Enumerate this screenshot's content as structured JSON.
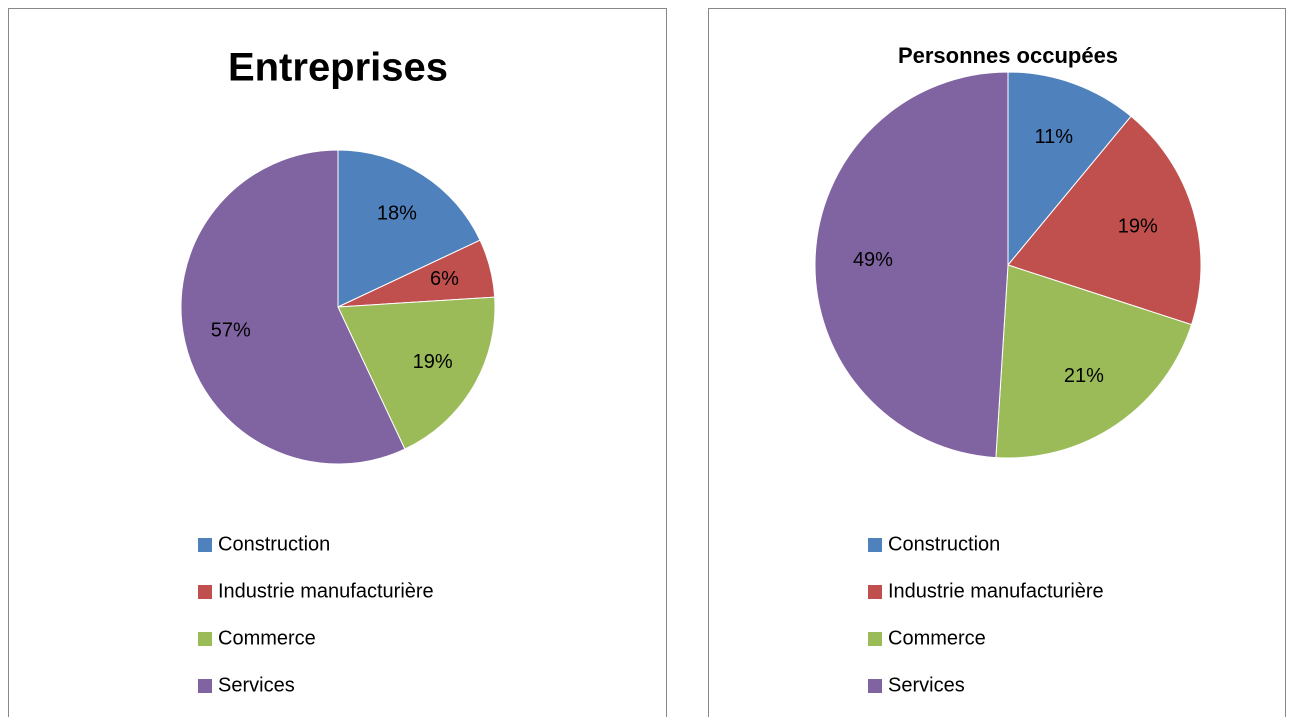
{
  "chart_data": [
    {
      "type": "pie",
      "title": "Entreprises",
      "categories": [
        "Construction",
        "Industrie manufacturière",
        "Commerce",
        "Services"
      ],
      "values": [
        18,
        6,
        19,
        57
      ],
      "value_labels": [
        "18%",
        "6%",
        "19%",
        "57%"
      ],
      "colors": [
        "#4f81bd",
        "#c0504d",
        "#9bbb59",
        "#8064a2"
      ],
      "legend": "bottom"
    },
    {
      "type": "pie",
      "title": "Personnes occupées",
      "categories": [
        "Construction",
        "Industrie manufacturière",
        "Commerce",
        "Services"
      ],
      "values": [
        11,
        19,
        21,
        49
      ],
      "value_labels": [
        "11%",
        "19%",
        "21%",
        "49%"
      ],
      "colors": [
        "#4f81bd",
        "#c0504d",
        "#9bbb59",
        "#8064a2"
      ],
      "legend": "bottom"
    }
  ]
}
